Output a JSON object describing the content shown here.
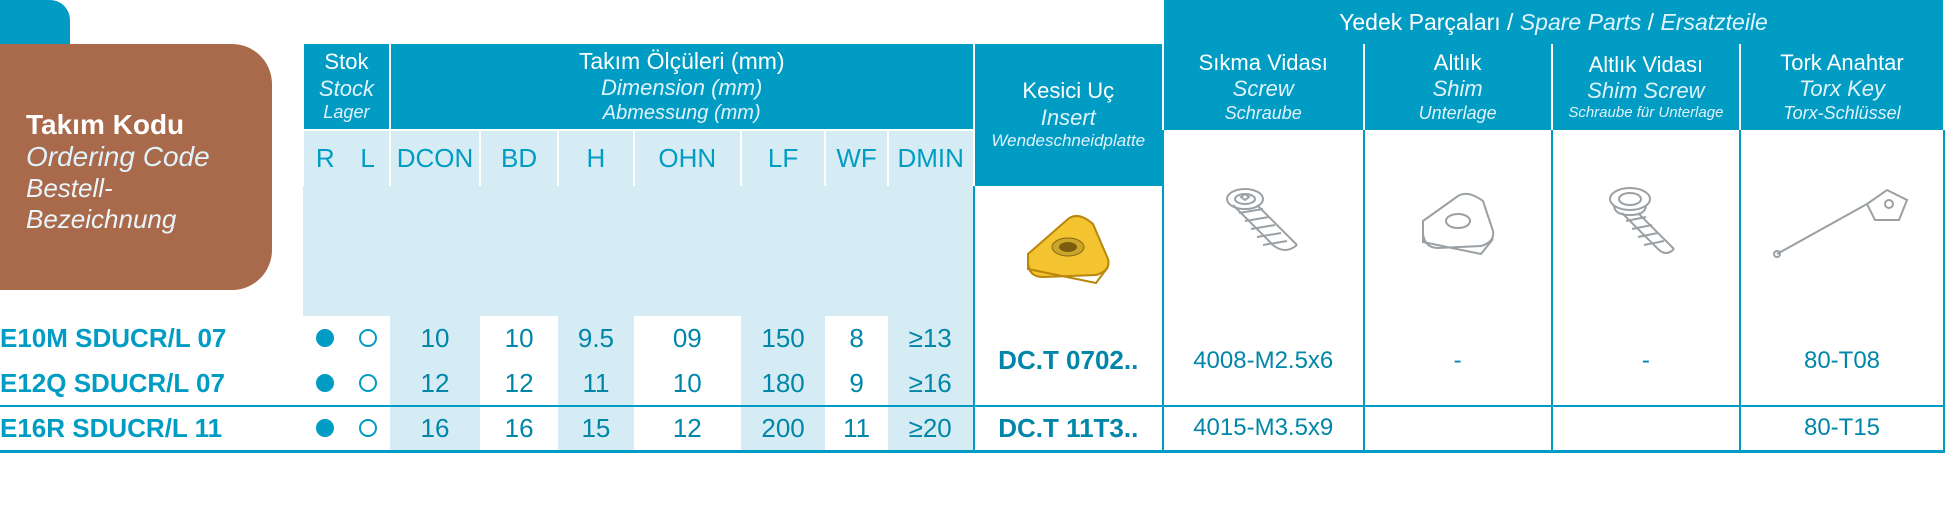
{
  "colors": {
    "brand": "#009cc4",
    "brown": "#a86a4a",
    "band": "#d6ecf4",
    "text": "#0086a8"
  },
  "orderingCode": {
    "l1": "Takım Kodu",
    "l2": "Ordering Code",
    "l3": "Bestell-Bezeichnung"
  },
  "spare": {
    "l1": "Yedek Parçaları",
    "l2": "Spare Parts",
    "l3": "Ersatzteile"
  },
  "hdr": {
    "stock": {
      "l1": "Stok",
      "l2": "Stock",
      "l3": "Lager"
    },
    "dim": {
      "l1": "Takım Ölçüleri (mm)",
      "l2": "Dimension (mm)",
      "l3": "Abmessung (mm)"
    },
    "insert": {
      "l1": "Kesici Uç",
      "l2": "Insert",
      "l3": "Wendeschneidplatte"
    },
    "screw": {
      "l1": "Sıkma Vidası",
      "l2": "Screw",
      "l3": "Schraube"
    },
    "shim": {
      "l1": "Altlık",
      "l2": "Shim",
      "l3": "Unterlage"
    },
    "ss": {
      "l1": "Altlık Vidası",
      "l2": "Shim Screw",
      "l3": "Schraube für Unterlage"
    },
    "key": {
      "l1": "Tork Anahtar",
      "l2": "Torx Key",
      "l3": "Torx-Schlüssel"
    }
  },
  "sub": {
    "R": "R",
    "L": "L",
    "DCON": "DCON",
    "BD": "BD",
    "H": "H",
    "OHN": "OHN",
    "LF": "LF",
    "WF": "WF",
    "DMIN": "DMIN"
  },
  "rows": [
    {
      "code": "E10M SDUCR/L 07",
      "R": true,
      "L": false,
      "DCON": "10",
      "BD": "10",
      "H": "9.5",
      "OHN": "09",
      "LF": "150",
      "WF": "8",
      "DMIN": "≥13"
    },
    {
      "code": "E12Q SDUCR/L 07",
      "R": true,
      "L": false,
      "DCON": "12",
      "BD": "12",
      "H": "11",
      "OHN": "10",
      "LF": "180",
      "WF": "9",
      "DMIN": "≥16"
    },
    {
      "code": "E16R SDUCR/L 11",
      "R": true,
      "L": false,
      "DCON": "16",
      "BD": "16",
      "H": "15",
      "OHN": "12",
      "LF": "200",
      "WF": "11",
      "DMIN": "≥20"
    }
  ],
  "merge": [
    {
      "insert": "DC.T 0702..",
      "screw": "4008-M2.5x6",
      "shim": "-",
      "ss": "-",
      "key": "80-T08",
      "span": 2
    },
    {
      "insert": "DC.T 11T3..",
      "screw": "4015-M3.5x9",
      "shim": "",
      "ss": "",
      "key": "80-T15",
      "span": 1
    }
  ]
}
